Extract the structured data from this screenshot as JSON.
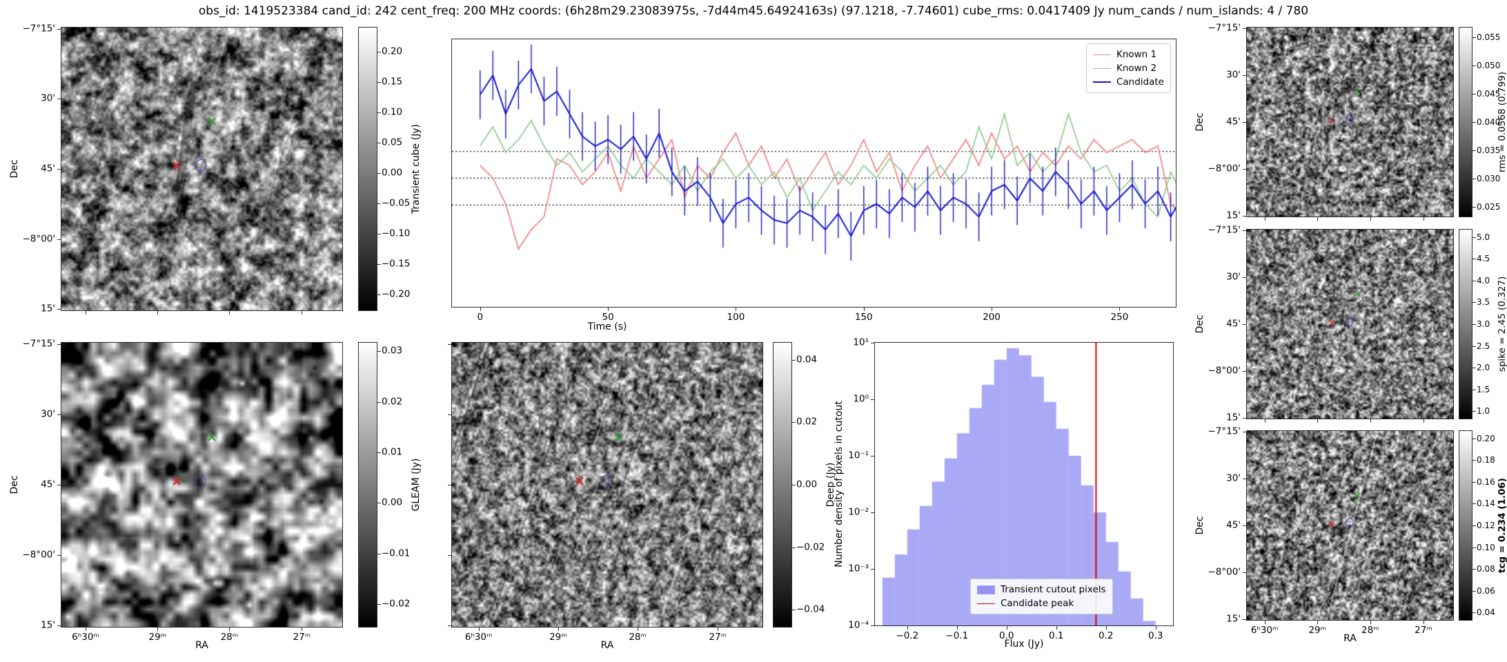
{
  "title": "obs_id: 1419523384 cand_id: 242 cent_freq: 200 MHz coords: (6h28m29.23083975s, -7d44m45.64924163s) (97.1218, -7.74601) cube_rms: 0.0417409 Jy num_cands / num_islands: 4 / 780",
  "axes": {
    "ra_label": "RA",
    "dec_label": "Dec",
    "ra_ticks": [
      "6ʰ30ᵐ",
      "29ᵐ",
      "28ᵐ",
      "27ᵐ"
    ],
    "dec_ticks": [
      "−7°15'",
      "30'",
      "45'",
      "−8°00'",
      "15'"
    ]
  },
  "colorbars": {
    "transient": {
      "label": "Transient cube (Jy)",
      "ticks": [
        "0.20",
        "0.15",
        "0.10",
        "0.05",
        "0.00",
        "−0.05",
        "−0.10",
        "−0.15",
        "−0.20"
      ]
    },
    "gleam": {
      "label": "GLEAM (Jy)",
      "ticks": [
        "0.03",
        "0.02",
        "0.01",
        "0.00",
        "−0.01",
        "−0.02"
      ]
    },
    "deep": {
      "label": "Deep (Jy)",
      "ticks": [
        "0.04",
        "0.02",
        "0.00",
        "−0.02",
        "−0.04"
      ]
    },
    "rms": {
      "label": "rms = 0.0568 (0.799)",
      "ticks": [
        "0.055",
        "0.050",
        "0.045",
        "0.040",
        "0.035",
        "0.030",
        "0.025"
      ]
    },
    "spike": {
      "label": "spike = 2.45 (0.327)",
      "ticks": [
        "5.0",
        "4.5",
        "4.0",
        "3.5",
        "3.0",
        "2.5",
        "2.0",
        "1.5",
        "1.0"
      ]
    },
    "tcg": {
      "label": "tcg = 0.234 (1.06)",
      "bold": true,
      "ticks": [
        "0.20",
        "0.18",
        "0.16",
        "0.14",
        "0.12",
        "0.10",
        "0.08",
        "0.06",
        "0.04"
      ]
    }
  },
  "colors": {
    "known1": "#f08080",
    "known2": "#8fc98f",
    "candidate": "#1414cc",
    "hist_fill": "#7b7bf0",
    "candidate_peak": "#cc0000",
    "known1_marker": "#dd2222",
    "known2_marker": "#33a033",
    "candidate_marker": "#4343b8",
    "hline": "#000000"
  },
  "chart_data": [
    {
      "type": "line",
      "title": "",
      "xlabel": "Time (s)",
      "ylabel": "",
      "xlim": [
        -11,
        272
      ],
      "ylim": [
        -0.2,
        0.216
      ],
      "xticks": [
        0,
        50,
        100,
        150,
        200,
        250
      ],
      "hlines": [
        0.0417409,
        0.0,
        -0.0417409
      ],
      "legend_position": "upper right",
      "x": [
        0,
        5,
        10,
        15,
        20,
        25,
        30,
        35,
        40,
        45,
        50,
        55,
        60,
        65,
        70,
        75,
        80,
        85,
        90,
        95,
        100,
        105,
        110,
        115,
        120,
        125,
        130,
        135,
        140,
        145,
        150,
        155,
        160,
        165,
        170,
        175,
        180,
        185,
        190,
        195,
        200,
        205,
        210,
        215,
        220,
        225,
        230,
        235,
        240,
        245,
        250,
        255,
        260,
        265,
        270,
        275
      ],
      "series": [
        {
          "name": "Known 1",
          "color": "#f08080",
          "values": [
            0.02,
            0.0,
            -0.04,
            -0.11,
            -0.08,
            -0.06,
            0.03,
            0.02,
            -0.01,
            0.01,
            0.04,
            -0.02,
            0.05,
            0.0,
            0.03,
            0.06,
            -0.03,
            0.02,
            0.0,
            0.04,
            0.07,
            0.02,
            0.05,
            0.0,
            0.03,
            -0.02,
            0.01,
            0.04,
            -0.01,
            0.02,
            0.06,
            0.01,
            0.04,
            -0.02,
            0.02,
            0.05,
            0.0,
            0.03,
            0.06,
            0.02,
            0.07,
            0.03,
            0.05,
            0.01,
            0.04,
            0.02,
            0.05,
            0.03,
            0.06,
            0.04,
            0.05,
            0.06,
            0.04,
            0.05,
            -0.04,
            -0.06
          ]
        },
        {
          "name": "Known 2",
          "color": "#8fc98f",
          "values": [
            0.05,
            0.08,
            0.04,
            0.06,
            0.09,
            0.05,
            0.02,
            0.04,
            0.01,
            0.03,
            0.05,
            0.02,
            0.0,
            0.03,
            0.01,
            -0.01,
            0.02,
            -0.02,
            0.01,
            0.03,
            0.0,
            0.02,
            -0.01,
            0.01,
            -0.03,
            0.0,
            -0.05,
            -0.02,
            0.01,
            -0.01,
            0.02,
            0.0,
            0.03,
            0.01,
            -0.02,
            0.0,
            0.02,
            -0.01,
            0.01,
            0.08,
            0.03,
            0.1,
            0.02,
            0.04,
            0.01,
            0.03,
            0.1,
            0.04,
            0.01,
            0.02,
            -0.02,
            0.0,
            -0.04,
            -0.06,
            0.01,
            -0.03
          ]
        },
        {
          "name": "Candidate",
          "color": "#1414cc",
          "err": 0.038,
          "values": [
            0.13,
            0.16,
            0.1,
            0.145,
            0.17,
            0.12,
            0.135,
            0.1,
            0.065,
            0.05,
            0.06,
            0.045,
            0.065,
            0.03,
            0.07,
            0.01,
            -0.02,
            -0.005,
            -0.03,
            -0.07,
            -0.04,
            -0.03,
            -0.05,
            -0.065,
            -0.07,
            -0.05,
            -0.06,
            -0.08,
            -0.055,
            -0.09,
            -0.05,
            -0.04,
            -0.055,
            -0.03,
            -0.045,
            -0.02,
            -0.05,
            -0.03,
            -0.04,
            -0.06,
            -0.02,
            -0.01,
            -0.035,
            0.0,
            -0.02,
            0.01,
            -0.01,
            -0.04,
            -0.02,
            -0.05,
            -0.03,
            -0.01,
            -0.04,
            -0.02,
            -0.06,
            -0.025
          ]
        }
      ]
    },
    {
      "type": "bar",
      "title": "",
      "xlabel": "Flux (Jy)",
      "ylabel": "Number density of pixels in cutout",
      "xlim": [
        -0.265,
        0.335
      ],
      "ylim": [
        0.0001,
        10
      ],
      "ylog": true,
      "xticks": [
        -0.2,
        -0.1,
        0.0,
        0.1,
        0.2,
        0.3
      ],
      "xtick_labels": [
        "−0.2",
        "−0.1",
        "0.0",
        "0.1",
        "0.2",
        "0.3"
      ],
      "ytick_values": [
        10,
        1,
        0.1,
        0.01,
        0.001,
        0.0001
      ],
      "ytick_labels": [
        "10¹",
        "10⁰",
        "10⁻¹",
        "10⁻²",
        "10⁻³",
        "10⁻⁴"
      ],
      "bin_edges": [
        -0.25,
        -0.225,
        -0.2,
        -0.175,
        -0.15,
        -0.125,
        -0.1,
        -0.075,
        -0.05,
        -0.025,
        0.0,
        0.025,
        0.05,
        0.075,
        0.1,
        0.125,
        0.15,
        0.175,
        0.2,
        0.225,
        0.25,
        0.275,
        0.3
      ],
      "values": [
        0.0007,
        0.0018,
        0.005,
        0.013,
        0.035,
        0.09,
        0.25,
        0.7,
        1.8,
        5,
        8,
        6,
        2.5,
        0.9,
        0.3,
        0.1,
        0.03,
        0.01,
        0.003,
        0.0009,
        0.0003,
        0.00012
      ],
      "vline": 0.18,
      "legend": [
        "Transient cutout pixels",
        "Candidate peak"
      ],
      "legend_position": "lower right"
    }
  ]
}
